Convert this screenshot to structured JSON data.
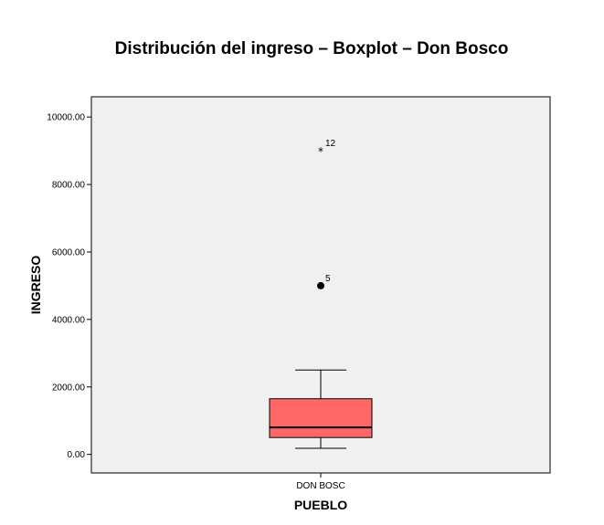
{
  "chart_data": {
    "type": "boxplot",
    "title": "Distribución del ingreso – Boxplot – Don Bosco",
    "xlabel": "PUEBLO",
    "ylabel": "INGRESO",
    "categories": [
      "DON BOSC"
    ],
    "ylim": [
      -550,
      10600
    ],
    "yticks": [
      0,
      2000,
      4000,
      6000,
      8000,
      10000
    ],
    "ytick_labels": [
      "0.00",
      "2000.00",
      "4000.00",
      "6000.00",
      "8000.00",
      "10000.00"
    ],
    "boxes": [
      {
        "category": "DON BOSC",
        "whisker_low": 180,
        "q1": 500,
        "median": 800,
        "q3": 1650,
        "whisker_high": 2500,
        "outliers": [
          {
            "value": 5000,
            "label": "5",
            "marker": "circle"
          },
          {
            "value": 9000,
            "label": "12",
            "marker": "star"
          }
        ]
      }
    ],
    "colors": {
      "box_fill": "#ff6666",
      "plot_background": "#f0f0f0",
      "line": "#000000"
    },
    "grid": false,
    "legend": "none"
  }
}
